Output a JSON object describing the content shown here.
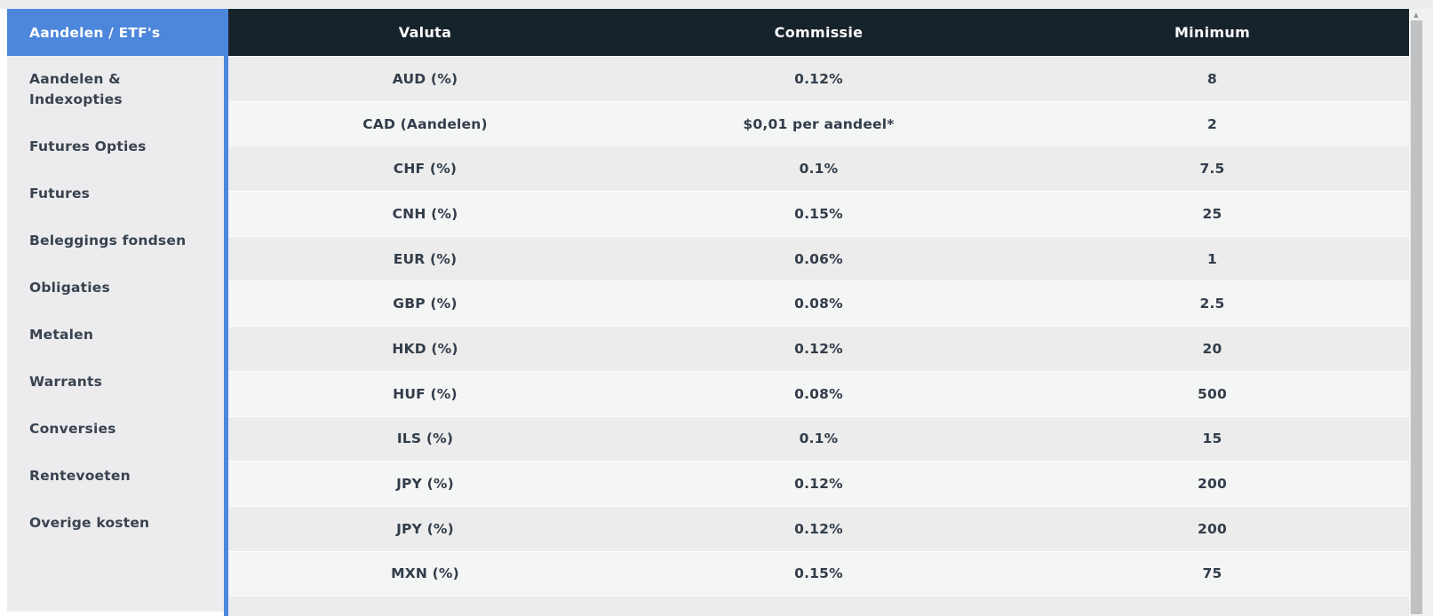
{
  "colors": {
    "accent_blue": "#4d87dc",
    "table_header_bg": "#17232a",
    "row_light": "#f4f5f5",
    "row_dark": "#ececec",
    "sidebar_bg": "#ececee"
  },
  "icons": {
    "scroll_up": "▲"
  },
  "sidebar": {
    "active_tab": "Aandelen / ETF's",
    "items": [
      {
        "label": "Aandelen &\nIndexopties"
      },
      {
        "label": "Futures Opties"
      },
      {
        "label": "Futures"
      },
      {
        "label": "Beleggings fondsen"
      },
      {
        "label": "Obligaties"
      },
      {
        "label": "Metalen"
      },
      {
        "label": "Warrants"
      },
      {
        "label": "Conversies"
      },
      {
        "label": "Rentevoeten"
      },
      {
        "label": "Overige kosten"
      }
    ]
  },
  "table": {
    "columns": [
      "Valuta",
      "Commissie",
      "Minimum"
    ],
    "rows": [
      {
        "valuta": "AUD (%)",
        "commissie": "0.12%",
        "minimum": "8"
      },
      {
        "valuta": "CAD (Aandelen)",
        "commissie": "$0,01 per aandeel*",
        "minimum": "2"
      },
      {
        "valuta": "CHF (%)",
        "commissie": "0.1%",
        "minimum": "7.5"
      },
      {
        "valuta": "CNH (%)",
        "commissie": "0.15%",
        "minimum": "25"
      },
      {
        "valuta": "EUR (%)",
        "commissie": "0.06%",
        "minimum": "1"
      },
      {
        "valuta": "GBP (%)",
        "commissie": "0.08%",
        "minimum": "2.5"
      },
      {
        "valuta": "HKD (%)",
        "commissie": "0.12%",
        "minimum": "20"
      },
      {
        "valuta": "HUF (%)",
        "commissie": "0.08%",
        "minimum": "500"
      },
      {
        "valuta": "ILS (%)",
        "commissie": "0.1%",
        "minimum": "15"
      },
      {
        "valuta": "JPY (%)",
        "commissie": "0.12%",
        "minimum": "200"
      },
      {
        "valuta": "JPY (%)",
        "commissie": "0.12%",
        "minimum": "200"
      },
      {
        "valuta": "MXN (%)",
        "commissie": "0.15%",
        "minimum": "75"
      }
    ]
  }
}
